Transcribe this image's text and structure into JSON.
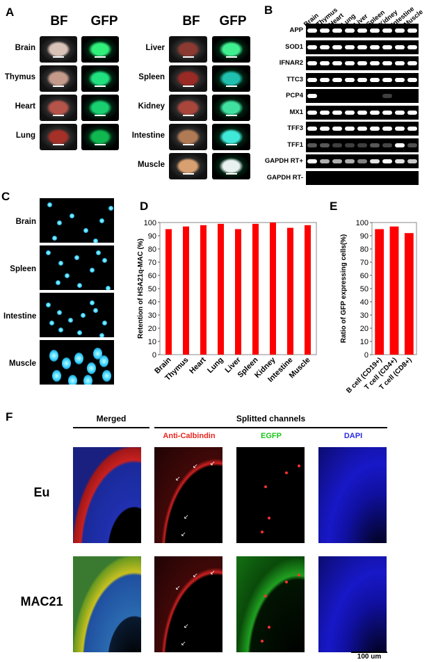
{
  "panels": {
    "a": "A",
    "b": "B",
    "c": "C",
    "d": "D",
    "e": "E",
    "f": "F"
  },
  "panel_a": {
    "header_bf": "BF",
    "header_gfp": "GFP",
    "left_tissues": [
      "Brain",
      "Thymus",
      "Heart",
      "Lung"
    ],
    "right_tissues": [
      "Liver",
      "Spleen",
      "Kidney",
      "Intestine",
      "Muscle"
    ]
  },
  "panel_b": {
    "columns": [
      "Brain",
      "Thymus",
      "Heart",
      "Lung",
      "Liver",
      "Spleen",
      "Kidney",
      "Intestine",
      "Muscle"
    ],
    "genes": [
      "APP",
      "SOD1",
      "IFNAR2",
      "TTC3",
      "PCP4",
      "MX1",
      "TFF3",
      "TFF1",
      "GAPDH RT+",
      "GAPDH RT-"
    ]
  },
  "panel_c": {
    "tissues": [
      "Brain",
      "Spleen",
      "Intestine",
      "Muscle"
    ]
  },
  "chart_data": [
    {
      "type": "bar",
      "panel": "D",
      "categories": [
        "Brain",
        "Thymus",
        "Heart",
        "Lung",
        "Liver",
        "Spleen",
        "Kidney",
        "Intestine",
        "Muscle"
      ],
      "values": [
        95,
        97,
        98,
        99,
        95,
        99,
        100,
        96,
        98
      ],
      "ylabel": "Retention of HSA21q-MAC (%)",
      "ylim": [
        0,
        100
      ],
      "yticks": [
        "0",
        "10",
        "20",
        "30",
        "40",
        "50",
        "60",
        "70",
        "80",
        "90",
        "100"
      ],
      "bar_color": "#ff0000"
    },
    {
      "type": "bar",
      "panel": "E",
      "categories": [
        "B cell (CD19+)",
        "T cell (CD4+)",
        "T cell (CD8+)"
      ],
      "values": [
        95,
        97,
        92
      ],
      "ylabel": "Ratio of GFP expressing cells(%)",
      "ylim": [
        0,
        100
      ],
      "yticks": [
        "0",
        "10",
        "20",
        "30",
        "40",
        "50",
        "60",
        "70",
        "80",
        "90",
        "100"
      ],
      "bar_color": "#ff0000"
    }
  ],
  "panel_f": {
    "merged_label": "Merged",
    "split_label": "Splitted channels",
    "channels": [
      "Anti-Calbindin",
      "EGFP",
      "DAPI"
    ],
    "channel_colors": [
      "#e8251f",
      "#19c519",
      "#2a2adf"
    ],
    "rows": [
      "Eu",
      "MAC21"
    ],
    "scale_bar": "100 um"
  }
}
